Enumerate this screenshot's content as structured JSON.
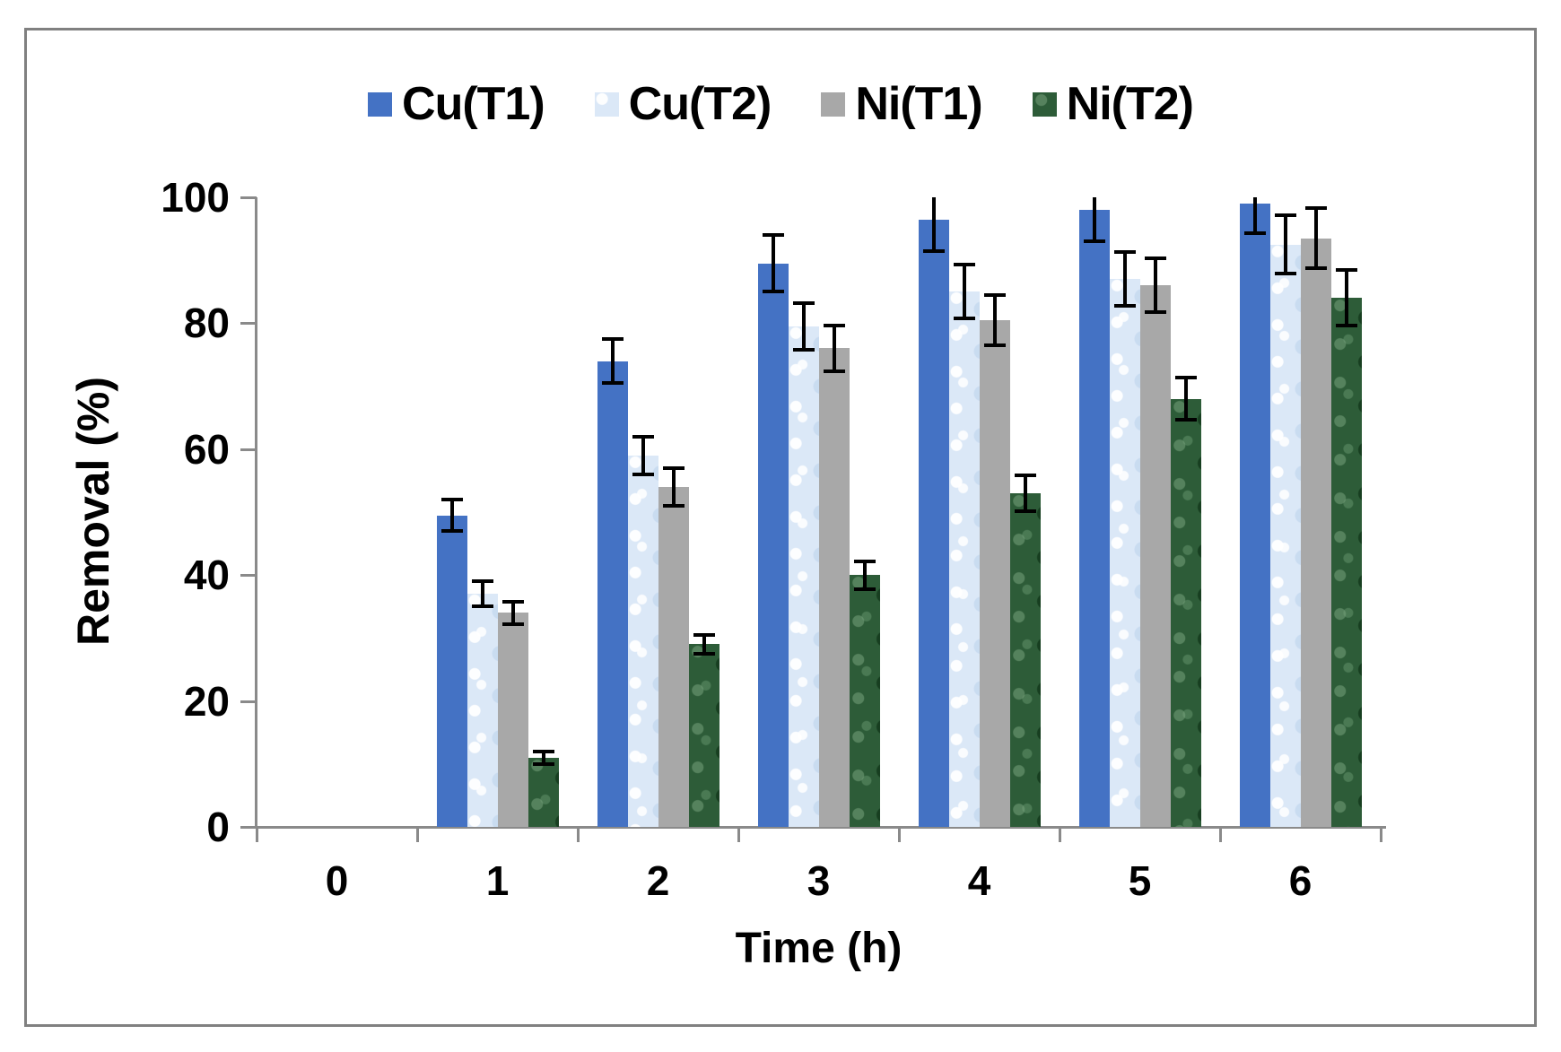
{
  "chart_data": {
    "type": "bar",
    "title": "",
    "xlabel": "Time (h)",
    "ylabel": "Removal (%)",
    "x_tick_labels": [
      "0",
      "1",
      "2",
      "3",
      "4",
      "5",
      "6"
    ],
    "y_ticks": [
      0,
      20,
      40,
      60,
      80,
      100
    ],
    "ylim": [
      0,
      100
    ],
    "grid": false,
    "legend_position": "top",
    "error_bar_color": "#000000",
    "axis_color": "#8A8A8A",
    "series": [
      {
        "name": "Cu(T1)",
        "color": "#4472C4",
        "texture": "solid",
        "values": [
          0,
          49.5,
          74,
          89.5,
          96.5,
          98,
          99
        ],
        "errors": [
          0,
          2.5,
          3.5,
          4.5,
          5,
          5,
          4.7
        ]
      },
      {
        "name": "Cu(T2)",
        "color": "#DBE8F7",
        "texture": "mottled-light",
        "values": [
          0,
          37,
          59,
          79.5,
          85,
          87,
          92.5
        ],
        "errors": [
          0,
          2,
          3,
          3.7,
          4.3,
          4.3,
          4.6
        ]
      },
      {
        "name": "Ni(T1)",
        "color": "#A8A8A8",
        "texture": "solid",
        "values": [
          0,
          34,
          54,
          76,
          80.5,
          86,
          93.5
        ],
        "errors": [
          0,
          1.8,
          3,
          3.7,
          4,
          4.3,
          4.8
        ]
      },
      {
        "name": "Ni(T2)",
        "color": "#2D5C38",
        "texture": "mottled-dark",
        "values": [
          0,
          11,
          29,
          40,
          53,
          68,
          84
        ],
        "errors": [
          0,
          1,
          1.5,
          2.2,
          2.8,
          3.3,
          4.4
        ]
      }
    ]
  }
}
